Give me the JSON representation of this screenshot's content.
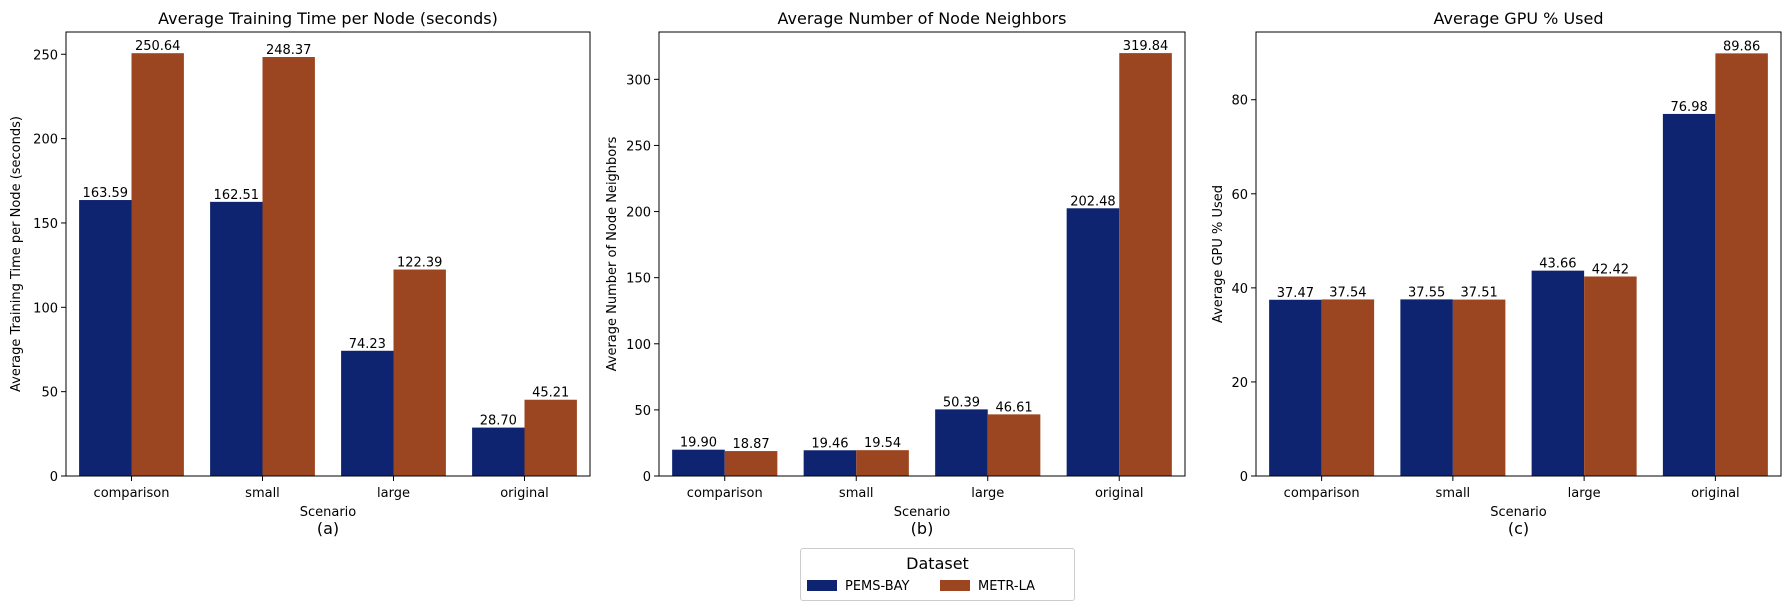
{
  "colors": {
    "PEMS-BAY": "#0e2470",
    "METR-LA": "#9b4620"
  },
  "legend": {
    "title": "Dataset",
    "items": [
      {
        "label": "PEMS-BAY",
        "color": "#0e2470"
      },
      {
        "label": "METR-LA",
        "color": "#9b4620"
      }
    ],
    "position": "bottom-center"
  },
  "chart_data": [
    {
      "type": "bar",
      "title": "Average Training Time per Node (seconds)",
      "xlabel": "Scenario",
      "ylabel": "Average Training Time per Node (seconds)",
      "caption": "(a)",
      "categories": [
        "comparison",
        "small",
        "large",
        "original"
      ],
      "series": [
        {
          "name": "PEMS-BAY",
          "values": [
            163.59,
            162.51,
            74.23,
            28.7
          ]
        },
        {
          "name": "METR-LA",
          "values": [
            250.64,
            248.37,
            122.39,
            45.21
          ]
        }
      ],
      "labels": [
        [
          "163.59",
          "162.51",
          "74.23",
          "28.70"
        ],
        [
          "250.64",
          "248.37",
          "122.39",
          "45.21"
        ]
      ],
      "ylim": [
        0,
        263.2
      ],
      "yticks": [
        0,
        50,
        100,
        150,
        200,
        250
      ],
      "grid": false
    },
    {
      "type": "bar",
      "title": "Average Number of Node Neighbors",
      "xlabel": "Scenario",
      "ylabel": "Average Number of Node Neighbors",
      "caption": "(b)",
      "categories": [
        "comparison",
        "small",
        "large",
        "original"
      ],
      "series": [
        {
          "name": "PEMS-BAY",
          "values": [
            19.9,
            19.46,
            50.39,
            202.48
          ]
        },
        {
          "name": "METR-LA",
          "values": [
            18.87,
            19.54,
            46.61,
            319.84
          ]
        }
      ],
      "labels": [
        [
          "19.90",
          "19.46",
          "50.39",
          "202.48"
        ],
        [
          "18.87",
          "19.54",
          "46.61",
          "319.84"
        ]
      ],
      "ylim": [
        0,
        335.8
      ],
      "yticks": [
        0,
        50,
        100,
        150,
        200,
        250,
        300
      ],
      "grid": false
    },
    {
      "type": "bar",
      "title": "Average GPU % Used",
      "xlabel": "Scenario",
      "ylabel": "Average GPU % Used",
      "caption": "(c)",
      "categories": [
        "comparison",
        "small",
        "large",
        "original"
      ],
      "series": [
        {
          "name": "PEMS-BAY",
          "values": [
            37.47,
            37.55,
            43.66,
            76.98
          ]
        },
        {
          "name": "METR-LA",
          "values": [
            37.54,
            37.51,
            42.42,
            89.86
          ]
        }
      ],
      "labels": [
        [
          "37.47",
          "37.55",
          "43.66",
          "76.98"
        ],
        [
          "37.54",
          "37.51",
          "42.42",
          "89.86"
        ]
      ],
      "ylim": [
        0,
        94.4
      ],
      "yticks": [
        0,
        20,
        40,
        60,
        80
      ],
      "grid": false
    }
  ]
}
